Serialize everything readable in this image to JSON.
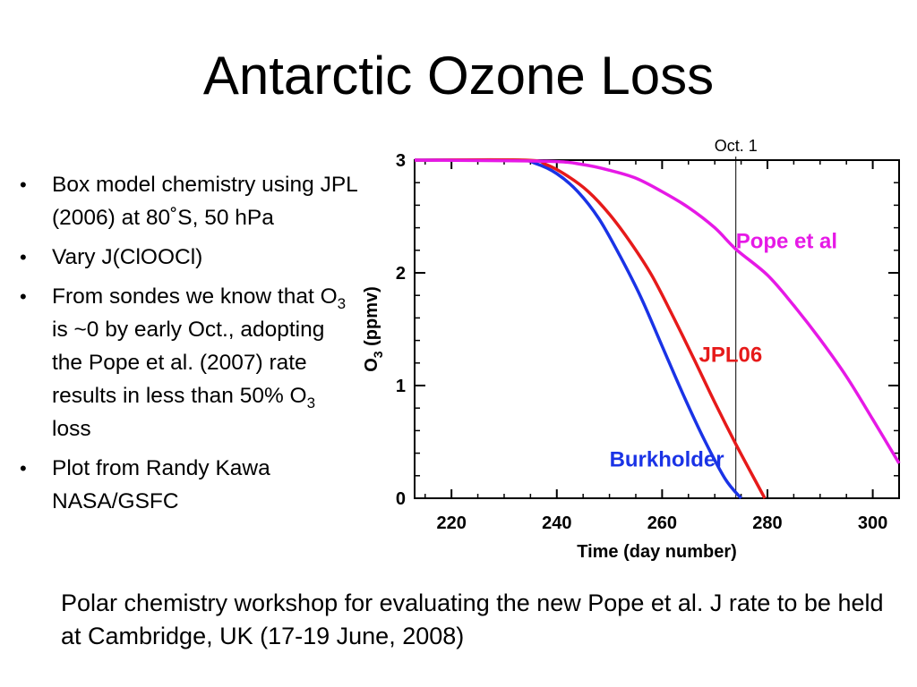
{
  "slide": {
    "title": "Antarctic Ozone Loss",
    "bullets": [
      {
        "parts": [
          {
            "t": "Box model chemistry using JPL (2006) at 80˚S, 50 hPa"
          }
        ]
      },
      {
        "parts": [
          {
            "t": "Vary J(ClOOCl)"
          }
        ]
      },
      {
        "parts": [
          {
            "t": "From sondes we know that O"
          },
          {
            "t": "3",
            "sub": true
          },
          {
            "t": " is ~0 by early Oct., adopting the Pope et al. (2007) rate results in less than 50% O"
          },
          {
            "t": "3",
            "sub": true
          },
          {
            "t": " loss"
          }
        ]
      },
      {
        "parts": [
          {
            "t": "Plot from Randy Kawa NASA/GSFC"
          }
        ]
      }
    ],
    "footer": "Polar chemistry workshop for evaluating the new Pope et al. J rate to be held at Cambridge, UK (17-19 June, 2008)"
  },
  "chart_data": {
    "type": "line",
    "xlabel": "Time (day number)",
    "ylabel_main": "O",
    "ylabel_sub": "3",
    "ylabel_rest": " (ppmv)",
    "xlim": [
      213,
      305
    ],
    "ylim": [
      0,
      3
    ],
    "xticks": [
      220,
      240,
      260,
      280,
      300
    ],
    "yticks": [
      0,
      1,
      2,
      3
    ],
    "grid": false,
    "vline": {
      "x": 274,
      "label": "Oct. 1"
    },
    "series": [
      {
        "name": "Burkholder",
        "color": "#1a33e6",
        "label_anchor": [
          250,
          0.28
        ],
        "x": [
          213,
          232,
          236,
          240,
          244,
          248,
          252,
          256,
          260,
          264,
          268,
          272,
          275
        ],
        "y": [
          3.0,
          3.0,
          2.97,
          2.88,
          2.72,
          2.48,
          2.15,
          1.78,
          1.35,
          0.92,
          0.52,
          0.17,
          0.0
        ]
      },
      {
        "name": "JPL06",
        "color": "#e61a1a",
        "label_anchor": [
          267,
          1.21
        ],
        "x": [
          213,
          234,
          238,
          242,
          246,
          250,
          254,
          258,
          262,
          266,
          270,
          274,
          278,
          279.5
        ],
        "y": [
          3.0,
          3.0,
          2.96,
          2.86,
          2.72,
          2.52,
          2.27,
          1.98,
          1.62,
          1.24,
          0.85,
          0.48,
          0.13,
          0.0
        ]
      },
      {
        "name": "Pope et al",
        "color": "#e619e6",
        "label_anchor": [
          274,
          2.22
        ],
        "x": [
          213,
          238,
          245,
          250,
          255,
          260,
          265,
          270,
          274,
          280,
          285,
          290,
          295,
          300,
          305
        ],
        "y": [
          3.0,
          2.99,
          2.96,
          2.91,
          2.84,
          2.72,
          2.58,
          2.4,
          2.21,
          1.98,
          1.71,
          1.41,
          1.08,
          0.7,
          0.31
        ]
      }
    ]
  }
}
